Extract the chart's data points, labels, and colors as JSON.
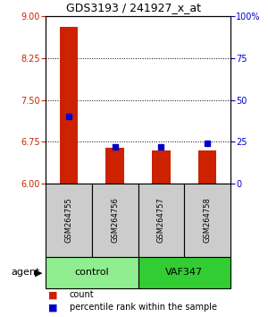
{
  "title": "GDS3193 / 241927_x_at",
  "samples": [
    "GSM264755",
    "GSM264756",
    "GSM264757",
    "GSM264758"
  ],
  "groups": [
    "control",
    "control",
    "VAF347",
    "VAF347"
  ],
  "count_values": [
    8.8,
    6.65,
    6.6,
    6.6
  ],
  "percentile_values": [
    40,
    22,
    22,
    24
  ],
  "ylim_left": [
    6,
    9
  ],
  "ylim_right": [
    0,
    100
  ],
  "yticks_left": [
    6,
    6.75,
    7.5,
    8.25,
    9
  ],
  "yticks_right": [
    0,
    25,
    50,
    75,
    100
  ],
  "ytick_labels_right": [
    "0",
    "25",
    "50",
    "75",
    "100%"
  ],
  "bar_color": "#CC2200",
  "dot_color": "#0000CC",
  "left_label_color": "#CC2200",
  "right_label_color": "#0000CC",
  "bar_width": 0.4,
  "font_size_title": 9,
  "font_size_ticks": 7,
  "font_size_sample": 6,
  "font_size_group": 8,
  "font_size_legend": 7,
  "font_size_agent": 8
}
